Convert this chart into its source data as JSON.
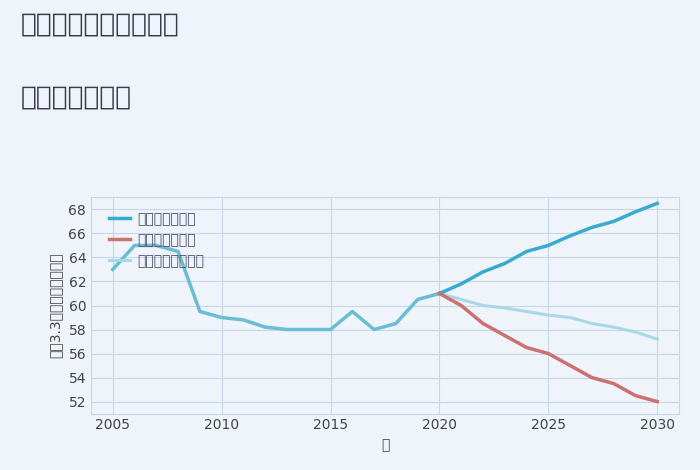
{
  "title_line1": "千葉県松戸市横須賀の",
  "title_line2": "土地の価格推移",
  "xlabel": "年",
  "ylabel": "坪（3.3㎡）単価（万円）",
  "background_color": "#eef4f9",
  "plot_bg_color": "#eef4f9",
  "ylim": [
    51,
    69
  ],
  "yticks": [
    52,
    54,
    56,
    58,
    60,
    62,
    64,
    66,
    68
  ],
  "xlim": [
    2004,
    2031
  ],
  "xticks": [
    2005,
    2010,
    2015,
    2020,
    2025,
    2030
  ],
  "historical": {
    "years": [
      2005,
      2006,
      2007,
      2008,
      2009,
      2010,
      2011,
      2012,
      2013,
      2014,
      2015,
      2016,
      2017,
      2018,
      2019,
      2020
    ],
    "values": [
      63.0,
      65.0,
      65.0,
      64.5,
      59.5,
      59.0,
      58.8,
      58.2,
      58.0,
      58.0,
      58.0,
      59.5,
      58.0,
      58.5,
      60.5,
      61.0
    ],
    "color": "#6bbdd4",
    "linewidth": 2.5
  },
  "good": {
    "years": [
      2020,
      2021,
      2022,
      2023,
      2024,
      2025,
      2026,
      2027,
      2028,
      2029,
      2030
    ],
    "values": [
      61.0,
      61.8,
      62.8,
      63.5,
      64.5,
      65.0,
      65.8,
      66.5,
      67.0,
      67.8,
      68.5
    ],
    "color": "#3aabcf",
    "linewidth": 2.5,
    "label": "グッドシナリオ"
  },
  "bad": {
    "years": [
      2020,
      2021,
      2022,
      2023,
      2024,
      2025,
      2026,
      2027,
      2028,
      2029,
      2030
    ],
    "values": [
      61.0,
      60.0,
      58.5,
      57.5,
      56.5,
      56.0,
      55.0,
      54.0,
      53.5,
      52.5,
      52.0
    ],
    "color": "#cc7070",
    "linewidth": 2.5,
    "label": "バッドシナリオ"
  },
  "normal": {
    "years": [
      2020,
      2021,
      2022,
      2023,
      2024,
      2025,
      2026,
      2027,
      2028,
      2029,
      2030
    ],
    "values": [
      61.0,
      60.5,
      60.0,
      59.8,
      59.5,
      59.2,
      59.0,
      58.5,
      58.2,
      57.8,
      57.2
    ],
    "color": "#a8d8e8",
    "linewidth": 2.2,
    "label": "ノーマルシナリオ"
  },
  "grid_color": "#c5d8e8",
  "title_fontsize": 19,
  "label_fontsize": 10,
  "tick_fontsize": 10,
  "legend_fontsize": 10,
  "title_color": "#3a3a4a"
}
